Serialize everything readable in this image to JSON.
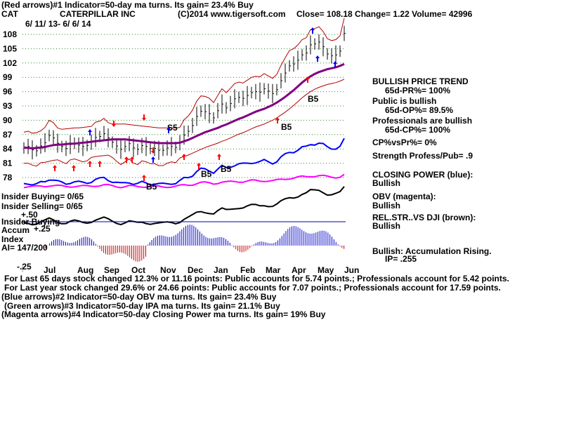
{
  "header": {
    "line1": "(Red arrows)#1 Indicator=50-day ma turns.  Its gain= 23.4% Buy",
    "ticker": "CAT",
    "company": "CATERPILLAR INC",
    "copyright": "(C)2014 www.tigersoft.com",
    "quote": "Close=  108.18  Change= 1.22 Volume= 42996",
    "date_range": "6/ 11/ 13-  6/ 6/ 14"
  },
  "chart_data": {
    "type": "line",
    "y_ticks": [
      "108",
      "105",
      "102",
      "99",
      "96",
      "93",
      "90",
      "87",
      "84",
      "81",
      "78"
    ],
    "x_labels": [
      "Jul",
      "Aug",
      "Sep",
      "Oct",
      "Nov",
      "Dec",
      "Jan",
      "Feb",
      "Mar",
      "Apr",
      "May",
      "Jun"
    ],
    "ylim": [
      78,
      108
    ],
    "grid": true,
    "price_close": [
      84.2,
      84.5,
      83.8,
      83.6,
      84.6,
      85.3,
      86.8,
      86.3,
      85.2,
      84.5,
      84.1,
      84.9,
      85.2,
      84.8,
      84.5,
      84.7,
      85.4,
      86.4,
      86.6,
      87.2,
      86.3,
      85.4,
      84.6,
      83.9,
      84.5,
      85.1,
      84.2,
      83.9,
      84.7,
      84.5,
      84.1,
      84.1,
      83.7,
      83.7,
      84.2,
      84.5,
      84.3,
      85.3,
      86.9,
      87.7,
      88.9,
      90.8,
      91.9,
      91.8,
      91.4,
      90.5,
      92.0,
      93.4,
      92.6,
      93.5,
      94.5,
      94.8,
      94.6,
      95.2,
      95.8,
      96.0,
      95.9,
      96.6,
      96.1,
      95.6,
      96.4,
      98.3,
      99.9,
      101.4,
      101.8,
      102.6,
      103.7,
      104.1,
      105.8,
      106.0,
      106.4,
      105.4,
      103.9,
      103.5,
      103.7,
      104.5,
      108.2
    ],
    "ma_50": [
      84.3,
      84.2,
      84.1,
      84.2,
      84.3,
      84.4,
      84.6,
      84.8,
      84.9,
      84.9,
      85.0,
      85.1,
      85.1,
      85.2,
      85.3,
      85.4,
      85.5,
      85.6,
      85.7,
      85.8,
      85.9,
      86.0,
      86.0,
      86.0,
      86.0,
      85.9,
      85.8,
      85.7,
      85.6,
      85.5,
      85.4,
      85.3,
      85.2,
      85.2,
      85.2,
      85.2,
      85.2,
      85.3,
      85.6,
      85.9,
      86.3,
      86.7,
      87.1,
      87.5,
      87.8,
      88.1,
      88.4,
      88.8,
      89.1,
      89.5,
      89.9,
      90.3,
      90.6,
      91.0,
      91.4,
      91.8,
      92.1,
      92.4,
      92.8,
      93.2,
      93.7,
      94.3,
      94.9,
      95.6,
      96.3,
      97.1,
      97.9,
      98.6,
      99.2,
      99.7,
      100.1,
      100.4,
      100.7,
      100.9,
      101.1,
      101.4,
      101.8
    ],
    "annotations": [
      "S5",
      "B5",
      "B5",
      "B5",
      "B5",
      "B5"
    ]
  },
  "stats": {
    "trend_title": "BULLISH PRICE TREND",
    "pr": "65d-PR%= 100%",
    "public_title": "Public is bullish",
    "op": "65d-OP%= 89.5%",
    "pro_title": "Professionals are bullish",
    "cp": "65d-CP%= 100%",
    "cpvspr": "CP%vsPr%=  0%",
    "strength": "Strength Profess/Pub= .9",
    "closing_power": "CLOSING POWER (blue):",
    "cp_val": "Bullish",
    "obv": "OBV (magenta):",
    "obv_val": "Bullish",
    "relstr": "REL.STR..VS DJI (brown):",
    "relstr_val": "Bullish",
    "accum": "Bullish: Accumulation Rising.",
    "ip": "IP=  .255"
  },
  "insider": {
    "buying": "Insider Buying= 0/65",
    "selling": "Insider Selling= 0/65",
    "buying2": "Insider Buying"
  },
  "accum": {
    "title": "Accum",
    "index": "Index",
    "ai": "AI= 147/200",
    "plus50": "+.50",
    "plus25": "+.25",
    "minus25": "-.25"
  },
  "footer": {
    "l1": "For Last 65 days stock changed  12.3% or  11.16 points:  Public accounts for  5.74 points.;  Professionals account for  5.42 points.",
    "l2": "For Last year stock changed  29.6% or  24.66 points:  Public accounts for  7.07 points.;  Professionals account for  17.59 points.",
    "l3": "(Blue arrows)#2 Indicator=50-day OBV ma turns.  Its gain= 23.4% Buy",
    "l4": "(Green arrows)#3 Indicator=50-day IPA ma turns.  Its gain= 21.1% Buy",
    "l5": "(Magenta arrows)#4 Indicator=50-day Closing Power ma turns.  Its gain= 19% Buy"
  }
}
